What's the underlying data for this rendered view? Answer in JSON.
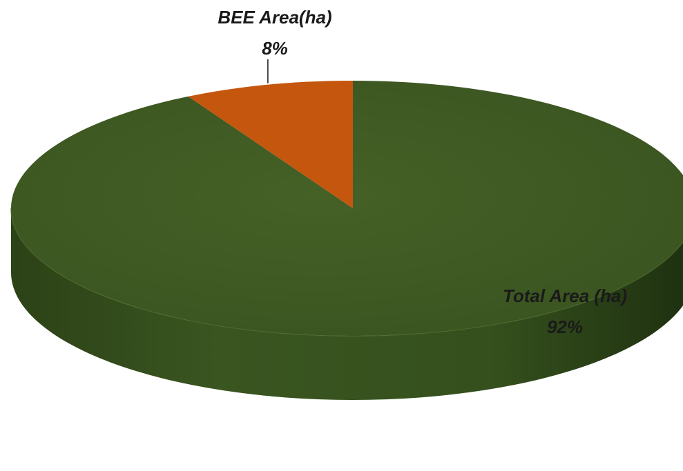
{
  "chart_data": {
    "type": "pie",
    "style": "3d",
    "categories": [
      "Total Area (ha)",
      "BEE Area(ha)"
    ],
    "values": [
      92,
      8
    ],
    "data_labels": [
      "92%",
      "8%"
    ],
    "colors": [
      "#3f5a22",
      "#c4560e"
    ],
    "title": "",
    "legend": "none"
  }
}
